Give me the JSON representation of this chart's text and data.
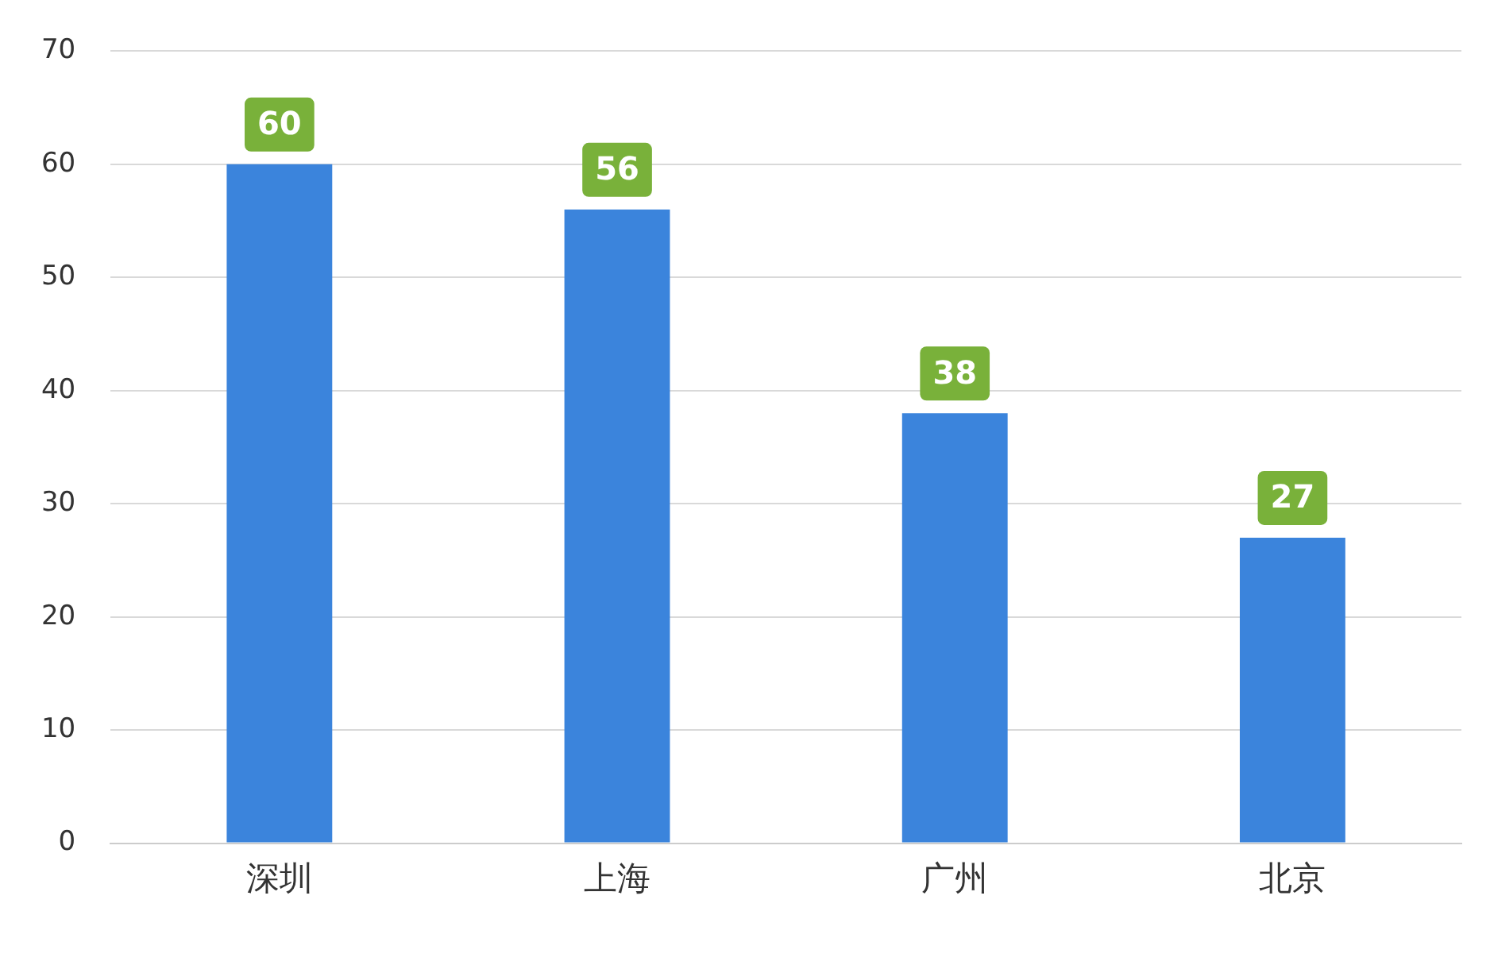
{
  "chart_data": {
    "type": "bar",
    "categories": [
      "深圳",
      "上海",
      "广州",
      "北京"
    ],
    "values": [
      60,
      56,
      38,
      27
    ],
    "color": "#3b84dc",
    "ylim": [
      0,
      70
    ],
    "yticks": [
      0,
      10,
      20,
      30,
      40,
      50,
      60,
      70
    ],
    "grid": "y",
    "data_labels": true,
    "legend": false
  }
}
